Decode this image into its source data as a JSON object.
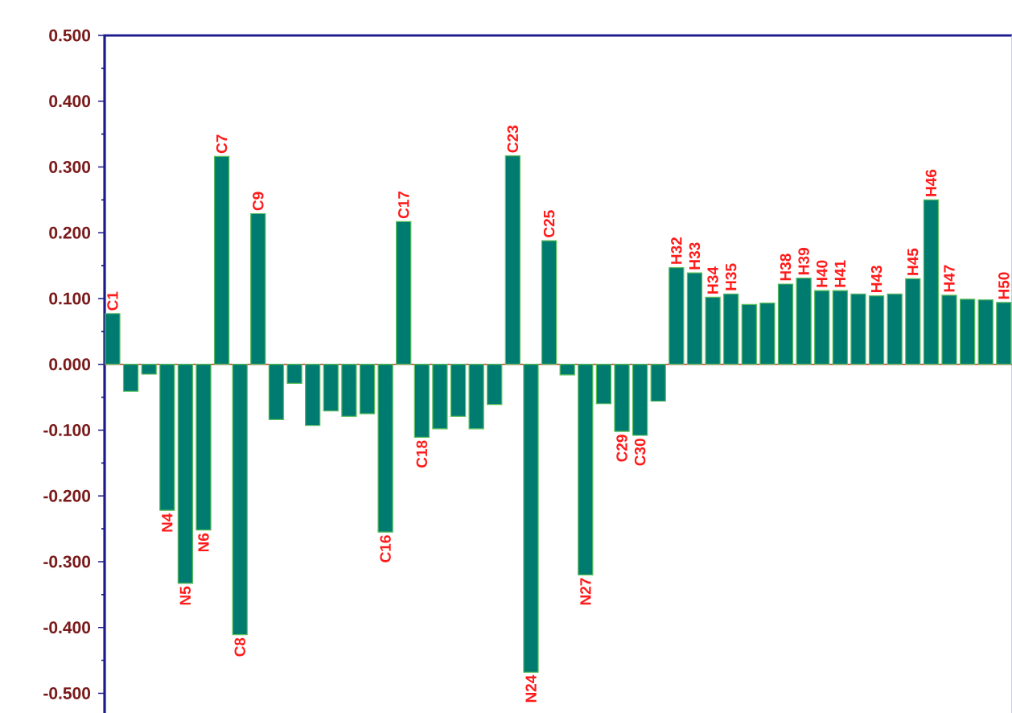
{
  "chart_data": {
    "type": "bar",
    "categories": [
      "C1",
      null,
      null,
      "N4",
      "N5",
      "N6",
      "C7",
      "C8",
      "C9",
      null,
      null,
      null,
      null,
      null,
      null,
      "C16",
      "C17",
      "C18",
      null,
      null,
      null,
      null,
      "C23",
      "N24",
      "C25",
      null,
      "N27",
      null,
      "C29",
      "C30",
      null,
      "H32",
      "H33",
      "H34",
      "H35",
      null,
      null,
      "H38",
      "H39",
      "H40",
      "H41",
      null,
      "H43",
      null,
      "H45",
      "H46",
      "H47",
      null,
      null,
      "H50"
    ],
    "values": [
      0.077,
      -0.041,
      -0.015,
      -0.222,
      -0.333,
      -0.252,
      0.316,
      -0.411,
      0.229,
      -0.084,
      -0.029,
      -0.093,
      -0.071,
      -0.079,
      -0.075,
      -0.255,
      0.217,
      -0.111,
      -0.098,
      -0.079,
      -0.098,
      -0.061,
      0.317,
      -0.468,
      0.188,
      -0.016,
      -0.32,
      -0.06,
      -0.102,
      -0.108,
      -0.056,
      0.147,
      0.139,
      0.102,
      0.107,
      0.091,
      0.093,
      0.122,
      0.131,
      0.112,
      0.112,
      0.107,
      0.104,
      0.107,
      0.13,
      0.25,
      0.105,
      0.099,
      0.098,
      0.094
    ],
    "color": "#007b70",
    "ylim": [
      -0.53,
      0.5
    ],
    "yticks": [
      {
        "value": -0.5,
        "label": "-0.500"
      },
      {
        "value": -0.4,
        "label": "-0.400"
      },
      {
        "value": -0.3,
        "label": "-0.300"
      },
      {
        "value": -0.2,
        "label": "-0.200"
      },
      {
        "value": -0.1,
        "label": "-0.100"
      },
      {
        "value": 0,
        "label": "0.000"
      },
      {
        "value": 0.1,
        "label": "0.100"
      },
      {
        "value": 0.2,
        "label": "0.200"
      },
      {
        "value": 0.3,
        "label": "0.300"
      },
      {
        "value": 0.4,
        "label": "0.400"
      },
      {
        "value": 0.5,
        "label": "0.500"
      }
    ],
    "ref_lines": [
      {
        "axis": "y",
        "value": 0,
        "color": "#cc2222"
      }
    ],
    "tick_labels": "y"
  }
}
